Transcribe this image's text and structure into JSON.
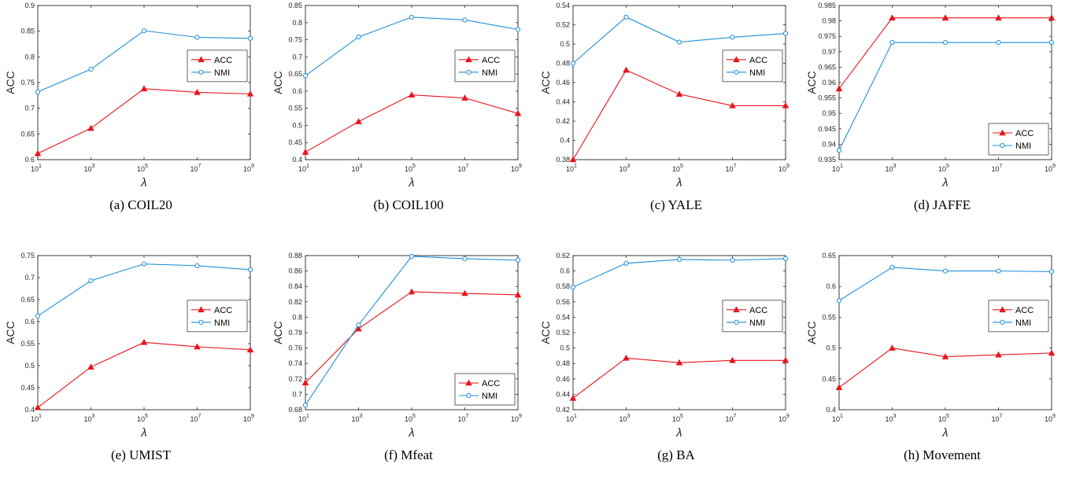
{
  "colors": {
    "acc": "#e8141b",
    "nmi": "#1f8fd8",
    "axis": "#262626"
  },
  "x_ticks": [
    {
      "base": "10",
      "exp": "1"
    },
    {
      "base": "10",
      "exp": "3"
    },
    {
      "base": "10",
      "exp": "5"
    },
    {
      "base": "10",
      "exp": "7"
    },
    {
      "base": "10",
      "exp": "9"
    }
  ],
  "chart_data": [
    {
      "type": "line",
      "caption": "(a) COIL20",
      "xlabel": "λ",
      "ylabel": "ACC",
      "x": [
        1,
        3,
        5,
        7,
        9
      ],
      "x_scale": "log10",
      "ylim": [
        0.6,
        0.9
      ],
      "yticks": [
        "0.6",
        "0.65",
        "0.7",
        "0.75",
        "0.8",
        "0.85",
        "0.9"
      ],
      "legend_position": "middle-right",
      "series": [
        {
          "name": "ACC",
          "marker": "triangle",
          "values": [
            0.612,
            0.661,
            0.738,
            0.731,
            0.728
          ]
        },
        {
          "name": "NMI",
          "marker": "circle",
          "values": [
            0.732,
            0.776,
            0.851,
            0.838,
            0.836
          ]
        }
      ]
    },
    {
      "type": "line",
      "caption": "(b) COIL100",
      "xlabel": "λ",
      "ylabel": "ACC",
      "x": [
        1,
        3,
        5,
        7,
        9
      ],
      "x_scale": "log10",
      "ylim": [
        0.4,
        0.85
      ],
      "yticks": [
        "0.4",
        "0.45",
        "0.5",
        "0.55",
        "0.6",
        "0.65",
        "0.7",
        "0.75",
        "0.8",
        "0.85"
      ],
      "legend_position": "middle-right",
      "series": [
        {
          "name": "ACC",
          "marker": "triangle",
          "values": [
            0.422,
            0.511,
            0.589,
            0.58,
            0.535
          ]
        },
        {
          "name": "NMI",
          "marker": "circle",
          "values": [
            0.645,
            0.758,
            0.816,
            0.808,
            0.78
          ]
        }
      ]
    },
    {
      "type": "line",
      "caption": "(c) YALE",
      "xlabel": "λ",
      "ylabel": "ACC",
      "x": [
        1,
        3,
        5,
        7,
        9
      ],
      "x_scale": "log10",
      "ylim": [
        0.38,
        0.54
      ],
      "yticks": [
        "0.38",
        "0.4",
        "0.42",
        "0.44",
        "0.46",
        "0.48",
        "0.5",
        "0.52",
        "0.54"
      ],
      "legend_position": "middle-right",
      "series": [
        {
          "name": "ACC",
          "marker": "triangle",
          "values": [
            0.38,
            0.473,
            0.448,
            0.436,
            0.436
          ]
        },
        {
          "name": "NMI",
          "marker": "circle",
          "values": [
            0.48,
            0.528,
            0.502,
            0.507,
            0.511
          ]
        }
      ]
    },
    {
      "type": "line",
      "caption": "(d) JAFFE",
      "xlabel": "λ",
      "ylabel": "ACC",
      "x": [
        1,
        3,
        5,
        7,
        9
      ],
      "x_scale": "log10",
      "ylim": [
        0.935,
        0.985
      ],
      "yticks": [
        "0.935",
        "0.94",
        "0.945",
        "0.95",
        "0.955",
        "0.96",
        "0.965",
        "0.97",
        "0.975",
        "0.98",
        "0.985"
      ],
      "legend_position": "lower-right",
      "series": [
        {
          "name": "ACC",
          "marker": "triangle",
          "values": [
            0.958,
            0.981,
            0.981,
            0.981,
            0.981
          ]
        },
        {
          "name": "NMI",
          "marker": "circle",
          "values": [
            0.938,
            0.973,
            0.973,
            0.973,
            0.973
          ]
        }
      ]
    },
    {
      "type": "line",
      "caption": "(e) UMIST",
      "xlabel": "λ",
      "ylabel": "ACC",
      "x": [
        1,
        3,
        5,
        7,
        9
      ],
      "x_scale": "log10",
      "ylim": [
        0.4,
        0.75
      ],
      "yticks": [
        "0.4",
        "0.45",
        "0.5",
        "0.55",
        "0.6",
        "0.65",
        "0.7",
        "0.75"
      ],
      "legend_position": "middle-right",
      "series": [
        {
          "name": "ACC",
          "marker": "triangle",
          "values": [
            0.405,
            0.497,
            0.553,
            0.543,
            0.536
          ]
        },
        {
          "name": "NMI",
          "marker": "circle",
          "values": [
            0.613,
            0.693,
            0.731,
            0.727,
            0.718
          ]
        }
      ]
    },
    {
      "type": "line",
      "caption": "(f) Mfeat",
      "xlabel": "λ",
      "ylabel": "ACC",
      "x": [
        1,
        3,
        5,
        7,
        9
      ],
      "x_scale": "log10",
      "ylim": [
        0.68,
        0.88
      ],
      "yticks": [
        "0.68",
        "0.7",
        "0.72",
        "0.74",
        "0.76",
        "0.78",
        "0.8",
        "0.82",
        "0.84",
        "0.86",
        "0.88"
      ],
      "legend_position": "lower-right",
      "series": [
        {
          "name": "ACC",
          "marker": "triangle",
          "values": [
            0.715,
            0.785,
            0.833,
            0.831,
            0.829
          ]
        },
        {
          "name": "NMI",
          "marker": "circle",
          "values": [
            0.686,
            0.79,
            0.879,
            0.876,
            0.874
          ]
        }
      ]
    },
    {
      "type": "line",
      "caption": "(g) BA",
      "xlabel": "λ",
      "ylabel": "ACC",
      "x": [
        1,
        3,
        5,
        7,
        9
      ],
      "x_scale": "log10",
      "ylim": [
        0.42,
        0.62
      ],
      "yticks": [
        "0.42",
        "0.44",
        "0.46",
        "0.48",
        "0.5",
        "0.52",
        "0.54",
        "0.56",
        "0.58",
        "0.6",
        "0.62"
      ],
      "legend_position": "middle-right",
      "series": [
        {
          "name": "ACC",
          "marker": "triangle",
          "values": [
            0.435,
            0.487,
            0.481,
            0.484,
            0.484
          ]
        },
        {
          "name": "NMI",
          "marker": "circle",
          "values": [
            0.579,
            0.61,
            0.615,
            0.614,
            0.616
          ]
        }
      ]
    },
    {
      "type": "line",
      "caption": "(h) Movement",
      "xlabel": "λ",
      "ylabel": "ACC",
      "x": [
        1,
        3,
        5,
        7,
        9
      ],
      "x_scale": "log10",
      "ylim": [
        0.4,
        0.65
      ],
      "yticks": [
        "0.4",
        "0.45",
        "0.5",
        "0.55",
        "0.6",
        "0.65"
      ],
      "legend_position": "middle-right",
      "series": [
        {
          "name": "ACC",
          "marker": "triangle",
          "values": [
            0.436,
            0.5,
            0.486,
            0.489,
            0.492
          ]
        },
        {
          "name": "NMI",
          "marker": "circle",
          "values": [
            0.577,
            0.631,
            0.625,
            0.625,
            0.624
          ]
        }
      ]
    }
  ]
}
